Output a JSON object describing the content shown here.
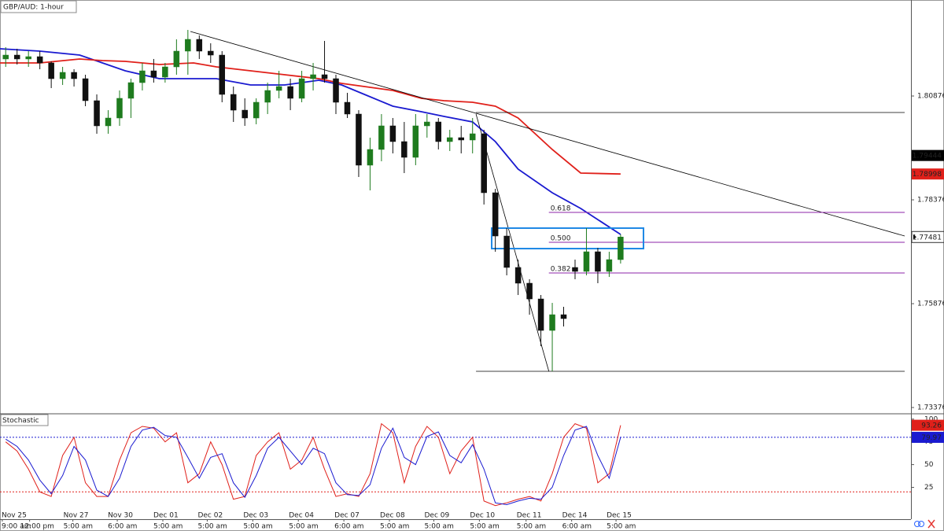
{
  "chart_data": [
    {
      "type": "candlestick",
      "title": "GBP/AUD: 1-hour",
      "x": [
        0.5,
        1.5,
        2.5,
        3.5,
        4.5,
        5.5,
        6.5,
        7.5,
        8.5,
        9.5,
        10.5,
        11.5,
        12.5,
        13.5,
        14.5,
        15.5,
        16.5,
        17.5,
        18.5,
        19.5,
        20.5,
        21.5,
        22.5,
        23.5,
        24.5,
        25.5,
        26.5,
        27.5,
        28.5,
        29.5,
        30.5,
        31.5,
        32.5,
        33.5,
        34.5,
        35.5,
        36.5,
        37.5,
        38.5,
        39.5,
        40.5,
        41.5,
        42.5,
        43.5,
        44.5,
        45.5,
        46.5,
        47.5,
        48.5,
        49.5,
        50.5,
        51.5,
        52.5,
        53.5,
        54.5
      ],
      "open": [
        1.81767,
        1.81861,
        1.81767,
        1.81823,
        1.81672,
        1.81293,
        1.81445,
        1.81293,
        1.80763,
        1.80157,
        1.80346,
        1.8082,
        1.81198,
        1.81482,
        1.81331,
        1.81577,
        1.81956,
        1.8224,
        1.81956,
        1.81861,
        1.80914,
        1.80535,
        1.80346,
        1.80725,
        1.81009,
        1.81104,
        1.8082,
        1.81293,
        1.81388,
        1.81293,
        1.80725,
        1.80441,
        1.7921,
        1.79589,
        1.80157,
        1.79778,
        1.79399,
        1.80157,
        1.80251,
        1.79778,
        1.79873,
        1.79816,
        1.79967,
        1.78547,
        1.77505,
        1.76748,
        1.76369,
        1.7599,
        1.75232,
        1.75611,
        1.76748,
        1.76653,
        1.77126,
        1.76653,
        1.76937
      ],
      "high": [
        1.82051,
        1.82013,
        1.81956,
        1.81956,
        1.8171,
        1.81577,
        1.8152,
        1.81388,
        1.80914,
        1.80535,
        1.81009,
        1.81293,
        1.81672,
        1.81767,
        1.81672,
        1.8224,
        1.82467,
        1.82335,
        1.82145,
        1.81956,
        1.81104,
        1.8082,
        1.8082,
        1.81198,
        1.81482,
        1.81293,
        1.81482,
        1.81672,
        1.82202,
        1.81388,
        1.80952,
        1.80535,
        1.79873,
        1.80441,
        1.80346,
        1.80251,
        1.80441,
        1.80441,
        1.80346,
        1.80062,
        1.80157,
        1.80346,
        1.80062,
        1.78642,
        1.77695,
        1.76937,
        1.76464,
        1.76085,
        1.75895,
        1.75801,
        1.76937,
        1.77695,
        1.77221,
        1.77126,
        1.77543
      ],
      "low": [
        1.81577,
        1.81634,
        1.81577,
        1.8152,
        1.81066,
        1.81142,
        1.81104,
        1.8063,
        1.79967,
        1.79967,
        1.80157,
        1.80346,
        1.81009,
        1.81198,
        1.81198,
        1.81388,
        1.81388,
        1.81767,
        1.81672,
        1.80725,
        1.80251,
        1.80157,
        1.80195,
        1.80441,
        1.8082,
        1.80535,
        1.80725,
        1.81009,
        1.81198,
        1.80441,
        1.80346,
        1.78926,
        1.78604,
        1.79304,
        1.79494,
        1.7902,
        1.7921,
        1.79873,
        1.79589,
        1.79551,
        1.79494,
        1.79494,
        1.78263,
        1.77126,
        1.76558,
        1.76085,
        1.75611,
        1.74854,
        1.74248,
        1.75327,
        1.76464,
        1.76558,
        1.76369,
        1.7652,
        1.76842
      ],
      "close": [
        1.81861,
        1.81767,
        1.81823,
        1.81672,
        1.81293,
        1.81445,
        1.81293,
        1.80763,
        1.80157,
        1.80346,
        1.8082,
        1.81198,
        1.81482,
        1.81331,
        1.81577,
        1.81956,
        1.8224,
        1.81956,
        1.81861,
        1.80914,
        1.80535,
        1.80346,
        1.80725,
        1.81009,
        1.81104,
        1.8082,
        1.81293,
        1.81388,
        1.81293,
        1.80725,
        1.80441,
        1.7921,
        1.79589,
        1.80157,
        1.79778,
        1.79399,
        1.80157,
        1.80251,
        1.79778,
        1.79873,
        1.79816,
        1.79967,
        1.78547,
        1.77505,
        1.76748,
        1.76369,
        1.7599,
        1.75232,
        1.75611,
        1.75517,
        1.76653,
        1.77126,
        1.76653,
        1.76937,
        1.77481
      ],
      "up_color": "#1e7b1e",
      "down_color": "#111111",
      "xlim": [
        0,
        80
      ],
      "ylim": [
        1.73244,
        1.83187
      ],
      "yticks": [
        1.80876,
        1.78376,
        1.75876,
        1.73376
      ],
      "xticks": [
        {
          "value": 0.2,
          "label": "9:00 am"
        },
        {
          "value": 2.6,
          "label": "12:00 pm"
        },
        {
          "value": 6.4,
          "label": "5:00 am"
        },
        {
          "value": 10.3,
          "label": "6:00 am"
        },
        {
          "value": 14.3,
          "label": "5:00 am"
        },
        {
          "value": 18.2,
          "label": "5:00 am"
        },
        {
          "value": 22.2,
          "label": "5:00 am"
        },
        {
          "value": 26.2,
          "label": "5:00 am"
        },
        {
          "value": 30.2,
          "label": "6:00 am"
        },
        {
          "value": 34.2,
          "label": "5:00 am"
        },
        {
          "value": 38.1,
          "label": "5:00 am"
        },
        {
          "value": 42.1,
          "label": "5:00 am"
        },
        {
          "value": 46.2,
          "label": "5:00 am"
        },
        {
          "value": 50.2,
          "label": "6:00 am"
        },
        {
          "value": 54.1,
          "label": "5:00 am"
        }
      ],
      "xtick_dates": [
        "Nov 25",
        null,
        "Nov 27",
        "Nov 30",
        "Dec 01",
        "Dec 02",
        "Dec 03",
        "Dec 04",
        "Dec 07",
        "Dec 08",
        "Dec 09",
        "Dec 10",
        "Dec 11",
        "Dec 14",
        "Dec 15"
      ],
      "lines": [
        {
          "color": "#1a1ad0",
          "x": [
            0,
            3.5,
            7,
            9,
            11,
            14,
            17,
            19,
            22,
            25,
            28,
            30,
            32,
            34.5,
            37,
            39,
            41.5,
            43.5,
            45.5,
            48.5,
            51,
            54.5
          ],
          "values": [
            1.82013,
            1.81956,
            1.81861,
            1.81672,
            1.81482,
            1.81293,
            1.81293,
            1.81293,
            1.81142,
            1.81142,
            1.81255,
            1.81142,
            1.80914,
            1.8063,
            1.80498,
            1.80384,
            1.80251,
            1.79778,
            1.79115,
            1.78547,
            1.78168,
            1.77543
          ]
        },
        {
          "color": "#e0201a",
          "x": [
            0,
            3.5,
            7,
            9,
            11,
            14,
            17,
            19,
            22,
            25,
            28,
            30,
            32,
            34.5,
            37,
            39,
            41.5,
            43.5,
            45.5,
            48.5,
            51,
            54.5
          ],
          "values": [
            1.81672,
            1.81672,
            1.81767,
            1.81729,
            1.8171,
            1.81634,
            1.81672,
            1.81577,
            1.81482,
            1.81388,
            1.81293,
            1.81179,
            1.81104,
            1.81009,
            1.8082,
            1.80763,
            1.80725,
            1.8063,
            1.80346,
            1.79589,
            1.7902,
            1.78998
          ]
        }
      ],
      "segments_color": "#000000",
      "segments": [
        {
          "x": [
            16.72,
            79.45
          ],
          "values": [
            1.82429,
            1.77505
          ]
        },
        {
          "x": [
            41.8,
            48.2
          ],
          "values": [
            1.80441,
            1.74248
          ]
        },
        {
          "x": [
            41.8,
            79.45
          ],
          "values": [
            1.80479,
            1.80479
          ]
        },
        {
          "x": [
            41.8,
            79.45
          ],
          "values": [
            1.74248,
            1.74248
          ]
        }
      ],
      "fib": {
        "color": "#8e24aa",
        "x": [
          48.2,
          79.45
        ],
        "levels": [
          {
            "value": 1.78074,
            "label": "0.618"
          },
          {
            "value": 1.77354,
            "label": "0.500"
          },
          {
            "value": 1.76615,
            "label": "0.382"
          }
        ]
      },
      "box": {
        "color": "#1e88e5",
        "x": [
          43.18,
          56.51
        ],
        "values": [
          1.77695,
          1.77202
        ]
      },
      "price_label": {
        "value": 1.79444,
        "color": "#000000"
      }
    },
    {
      "type": "line",
      "title": "Stochastic",
      "x": [
        0.5,
        1.5,
        2.5,
        3.5,
        4.5,
        5.5,
        6.5,
        7.5,
        8.5,
        9.5,
        10.5,
        11.5,
        12.5,
        13.5,
        14.5,
        15.5,
        16.5,
        17.5,
        18.5,
        19.5,
        20.5,
        21.5,
        22.5,
        23.5,
        24.5,
        25.5,
        26.5,
        27.5,
        28.5,
        29.5,
        30.5,
        31.5,
        32.5,
        33.5,
        34.5,
        35.5,
        36.5,
        37.5,
        38.5,
        39.5,
        40.5,
        41.5,
        42.5,
        43.5,
        44.5,
        45.5,
        46.5,
        47.5,
        48.5,
        49.5,
        50.5,
        51.5,
        52.5,
        53.5,
        54.5
      ],
      "series": [
        {
          "color": "#e0201a",
          "values": [
            75,
            65,
            45,
            20,
            15,
            60,
            80,
            30,
            15,
            15,
            55,
            85,
            92,
            90,
            75,
            85,
            30,
            40,
            75,
            50,
            12,
            15,
            60,
            75,
            85,
            45,
            55,
            80,
            45,
            15,
            18,
            15,
            40,
            95,
            85,
            30,
            70,
            92,
            80,
            40,
            65,
            80,
            10,
            5,
            8,
            12,
            15,
            10,
            40,
            80,
            95,
            90,
            30,
            40,
            93.26
          ]
        },
        {
          "color": "#1a1ad0",
          "values": [
            78,
            70,
            55,
            33,
            18,
            38,
            70,
            55,
            22,
            15,
            35,
            70,
            88,
            91,
            82,
            80,
            58,
            35,
            58,
            62,
            30,
            14,
            38,
            68,
            80,
            65,
            50,
            68,
            62,
            30,
            17,
            16,
            28,
            68,
            90,
            58,
            50,
            81,
            86,
            60,
            52,
            72,
            45,
            8,
            6,
            10,
            13,
            12,
            25,
            60,
            88,
            92,
            60,
            35,
            79.97
          ]
        }
      ],
      "xlim": [
        0,
        80
      ],
      "ylim": [
        -10,
        105
      ],
      "yticks": [
        25,
        50,
        75,
        100
      ],
      "levels": [
        {
          "value": 80,
          "color": "#1a1ad0"
        },
        {
          "value": 20,
          "color": "#e0201a"
        }
      ]
    }
  ]
}
